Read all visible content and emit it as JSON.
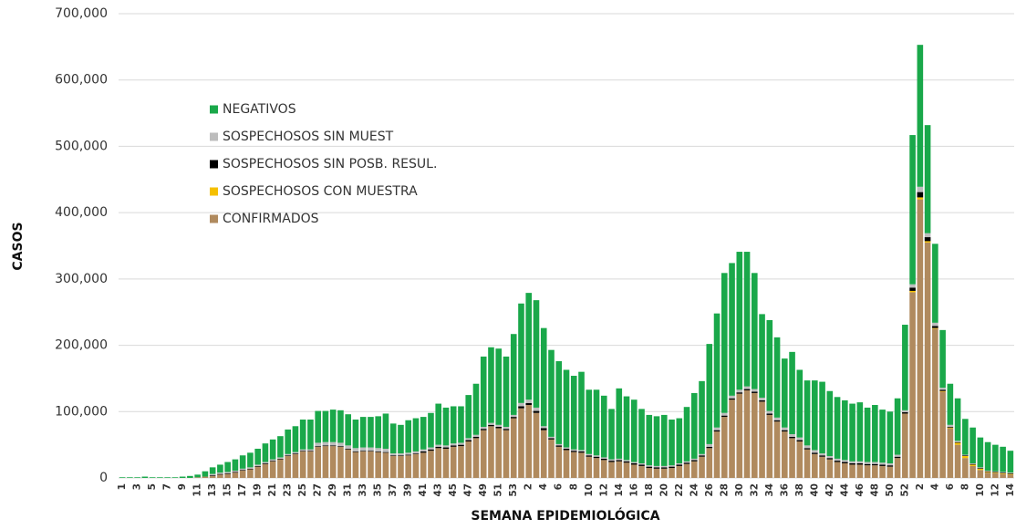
{
  "chart_data": {
    "type": "stacked-bar",
    "x_label": "SEMANA EPIDEMIOLÓGICA",
    "y_label": "CASOS",
    "categories": [
      "1",
      null,
      "3",
      null,
      "5",
      null,
      "7",
      null,
      "9",
      null,
      "11",
      null,
      "13",
      null,
      "15",
      null,
      "17",
      null,
      "19",
      null,
      "21",
      null,
      "23",
      null,
      "25",
      null,
      "27",
      null,
      "29",
      null,
      "31",
      null,
      "33",
      null,
      "35",
      null,
      "37",
      null,
      "39",
      null,
      "41",
      null,
      "43",
      null,
      "45",
      null,
      "47",
      null,
      "49",
      null,
      "51",
      null,
      "53",
      null,
      "2",
      null,
      "4",
      null,
      "6",
      null,
      "8",
      null,
      "10",
      null,
      "12",
      null,
      "14",
      null,
      "16",
      null,
      "18",
      null,
      "20",
      null,
      "22",
      null,
      "24",
      null,
      "26",
      null,
      "28",
      null,
      "30",
      null,
      "32",
      null,
      "34",
      null,
      "36",
      null,
      "38",
      null,
      "40",
      null,
      "42",
      null,
      "44",
      null,
      "46",
      null,
      "48",
      null,
      "50",
      null,
      "52",
      null,
      "2",
      null,
      "4",
      null,
      "6",
      null,
      "8",
      null,
      "10",
      null,
      "12",
      null,
      "14"
    ],
    "series": [
      {
        "name": "CONFIRMADOS",
        "color": "#b08a5e",
        "values": [
          0,
          0,
          0,
          0,
          0,
          0,
          0,
          0,
          0,
          0,
          1000,
          2000,
          3000,
          5000,
          6000,
          8000,
          11000,
          13000,
          17000,
          21000,
          25000,
          28000,
          33000,
          36000,
          40000,
          40000,
          47000,
          48000,
          48000,
          47000,
          43000,
          39000,
          40000,
          40000,
          39000,
          38000,
          33000,
          33000,
          34000,
          36000,
          38000,
          41000,
          45000,
          44000,
          47000,
          48000,
          55000,
          60000,
          72000,
          78000,
          75000,
          72000,
          90000,
          105000,
          110000,
          98000,
          72000,
          58000,
          47000,
          42000,
          39000,
          38000,
          32000,
          30000,
          27000,
          24000,
          25000,
          23000,
          20000,
          18000,
          15000,
          14000,
          14000,
          15000,
          18000,
          21000,
          25000,
          32000,
          45000,
          70000,
          92000,
          118000,
          127000,
          132000,
          128000,
          115000,
          95000,
          85000,
          70000,
          60000,
          55000,
          43000,
          36000,
          32000,
          28000,
          24000,
          22000,
          20000,
          20000,
          19000,
          19000,
          18000,
          17000,
          30000,
          97000,
          280000,
          420000,
          355000,
          225000,
          130000,
          75000,
          50000,
          30000,
          18000,
          12000,
          8000,
          7000,
          6000,
          5000
        ]
      },
      {
        "name": "SOSPECHOSOS CON MUESTRA",
        "color": "#f5c000",
        "values": [
          0,
          0,
          0,
          0,
          0,
          0,
          0,
          0,
          0,
          0,
          0,
          0,
          0,
          0,
          0,
          0,
          0,
          0,
          0,
          0,
          0,
          0,
          0,
          0,
          0,
          0,
          0,
          0,
          0,
          0,
          0,
          0,
          0,
          0,
          0,
          0,
          0,
          0,
          0,
          0,
          0,
          0,
          0,
          0,
          0,
          0,
          0,
          0,
          0,
          0,
          0,
          0,
          0,
          0,
          0,
          0,
          0,
          0,
          0,
          0,
          0,
          0,
          0,
          0,
          0,
          0,
          0,
          0,
          0,
          0,
          0,
          0,
          0,
          0,
          0,
          0,
          0,
          0,
          0,
          0,
          0,
          0,
          0,
          0,
          0,
          0,
          0,
          0,
          0,
          0,
          0,
          0,
          0,
          0,
          0,
          0,
          0,
          0,
          0,
          0,
          0,
          0,
          0,
          0,
          0,
          2000,
          3000,
          2000,
          1000,
          1000,
          1000,
          3000,
          3000,
          2000,
          2000,
          1000,
          1000,
          1000,
          1000
        ]
      },
      {
        "name": "SOSPECHOSOS SIN POSB. RESUL.",
        "color": "#000000",
        "values": [
          0,
          0,
          0,
          0,
          0,
          0,
          0,
          0,
          0,
          0,
          0,
          0,
          1000,
          1000,
          1000,
          1000,
          1000,
          1000,
          1000,
          1000,
          1000,
          1000,
          1000,
          1000,
          1000,
          1000,
          1000,
          1000,
          1000,
          1000,
          1000,
          1000,
          1000,
          1000,
          1000,
          1000,
          1000,
          1000,
          1000,
          1000,
          2000,
          2000,
          2000,
          2000,
          2000,
          2000,
          2000,
          2000,
          2000,
          2000,
          2000,
          2000,
          2000,
          3000,
          3000,
          3000,
          3000,
          2000,
          2000,
          2000,
          2000,
          2000,
          2000,
          2000,
          2000,
          2000,
          2000,
          2000,
          2000,
          2000,
          2000,
          2000,
          2000,
          2000,
          2000,
          2000,
          2000,
          2000,
          2000,
          2000,
          2000,
          2000,
          2000,
          2000,
          2000,
          2000,
          2000,
          2000,
          2000,
          2000,
          2000,
          2000,
          2000,
          2000,
          2000,
          2000,
          2000,
          2000,
          2000,
          2000,
          2000,
          2000,
          2000,
          2000,
          2000,
          5000,
          8000,
          6000,
          3000,
          2000,
          1000,
          1000,
          1000,
          1000,
          1000,
          1000,
          1000,
          1000,
          1000
        ]
      },
      {
        "name": "SOSPECHOSOS SIN MUEST",
        "color": "#bdbdbd",
        "values": [
          0,
          0,
          0,
          0,
          0,
          0,
          0,
          0,
          0,
          0,
          0,
          0,
          2000,
          2000,
          2000,
          2000,
          2000,
          2000,
          2000,
          2000,
          2000,
          2000,
          2000,
          2000,
          2000,
          2000,
          5000,
          5000,
          5000,
          5000,
          5000,
          5000,
          5000,
          5000,
          5000,
          5000,
          3000,
          3000,
          3000,
          3000,
          3000,
          3000,
          3000,
          3000,
          3000,
          3000,
          3000,
          3000,
          3000,
          3000,
          3000,
          3000,
          3000,
          5000,
          5000,
          5000,
          3000,
          2000,
          2000,
          2000,
          2000,
          2000,
          2000,
          2000,
          2000,
          2000,
          2000,
          2000,
          2000,
          2000,
          2000,
          2000,
          2000,
          2000,
          2000,
          2000,
          2000,
          2000,
          4000,
          4000,
          4000,
          4000,
          4000,
          4000,
          4000,
          4000,
          4000,
          4000,
          4000,
          4000,
          4000,
          4000,
          4000,
          3000,
          3000,
          3000,
          3000,
          3000,
          3000,
          3000,
          3000,
          3000,
          3000,
          3000,
          3000,
          5000,
          8000,
          6000,
          5000,
          3000,
          3000,
          2000,
          1000,
          1000,
          1000,
          1000,
          1000,
          1000,
          1000
        ]
      },
      {
        "name": "NEGATIVOS",
        "color": "#1aa84a",
        "values": [
          1000,
          1000,
          1000,
          2000,
          1000,
          1000,
          1000,
          1000,
          2000,
          3000,
          4000,
          8000,
          10000,
          12000,
          15000,
          17000,
          20000,
          22000,
          24000,
          28000,
          30000,
          32000,
          37000,
          39000,
          45000,
          45000,
          48000,
          47000,
          49000,
          49000,
          47000,
          43000,
          46000,
          46000,
          48000,
          53000,
          45000,
          43000,
          49000,
          50000,
          49000,
          52000,
          62000,
          57000,
          56000,
          55000,
          65000,
          77000,
          106000,
          114000,
          115000,
          106000,
          122000,
          150000,
          161000,
          162000,
          148000,
          131000,
          125000,
          117000,
          111000,
          118000,
          97000,
          99000,
          93000,
          76000,
          106000,
          96000,
          94000,
          82000,
          76000,
          75000,
          77000,
          69000,
          68000,
          82000,
          99000,
          110000,
          151000,
          172000,
          211000,
          200000,
          208000,
          203000,
          175000,
          126000,
          137000,
          121000,
          104000,
          124000,
          102000,
          98000,
          105000,
          108000,
          98000,
          93000,
          90000,
          87000,
          89000,
          82000,
          86000,
          80000,
          78000,
          85000,
          129000,
          225000,
          214000,
          163000,
          119000,
          87000,
          62000,
          64000,
          54000,
          54000,
          45000,
          43000,
          40000,
          38000,
          33000
        ]
      }
    ],
    "ylim": [
      0,
      700000
    ],
    "yticks": [
      0,
      {
        "value": 100000,
        "label": "100,000"
      },
      {
        "value": 200000,
        "label": "200,000"
      },
      {
        "value": 300000,
        "label": "300,000"
      },
      {
        "value": 400000,
        "label": "400,000"
      },
      {
        "value": 500000,
        "label": "500,000"
      },
      {
        "value": 600000,
        "label": "600,000"
      },
      {
        "value": 700000,
        "label": "700,000"
      }
    ],
    "grid": true,
    "legend": "upper-left"
  }
}
